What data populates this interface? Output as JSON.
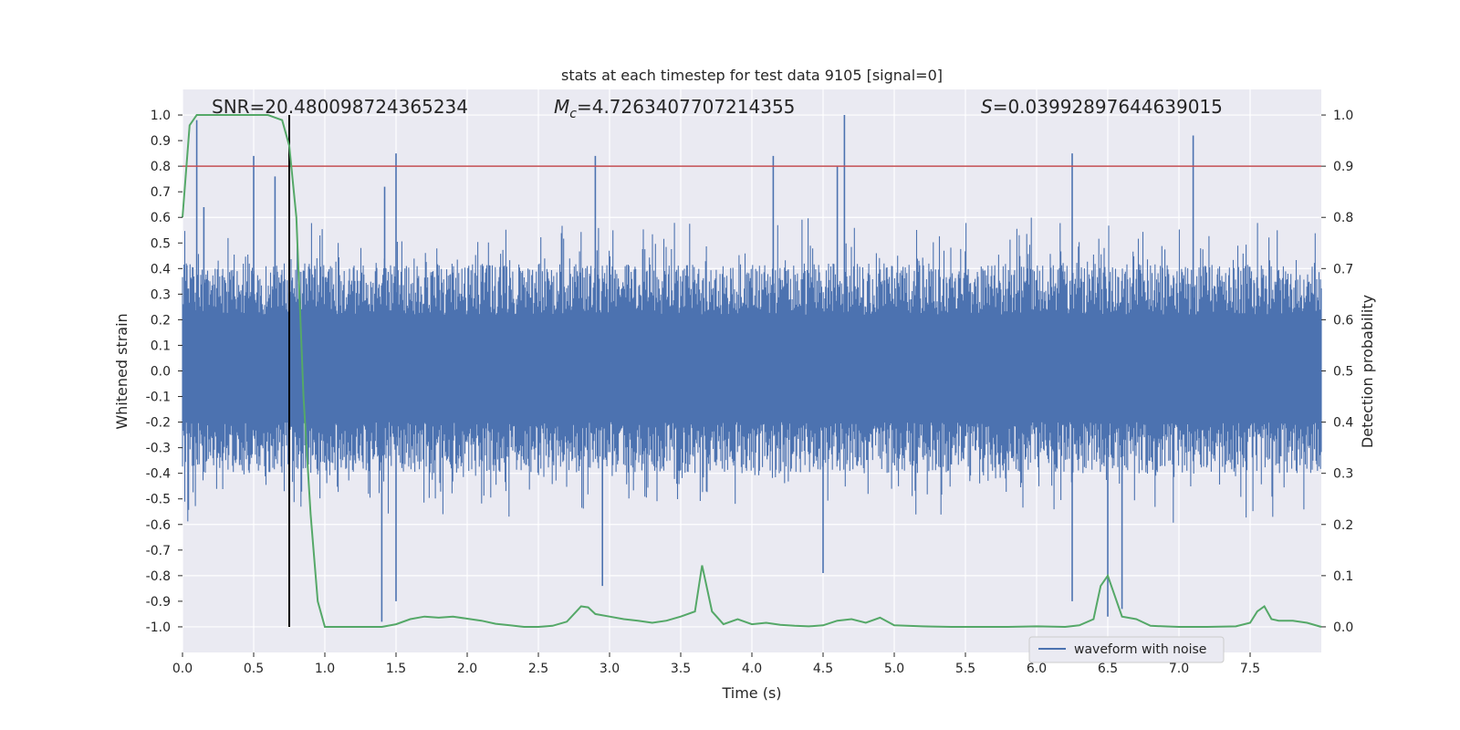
{
  "chart_data": {
    "type": "line",
    "title": "stats at each timestep for test data 9105 [signal=0]",
    "xlabel": "Time (s)",
    "ylabel": "Whitened strain",
    "ylabel_right": "Detection probability",
    "xlim": [
      0.0,
      8.0
    ],
    "ylim": [
      -1.1,
      1.1
    ],
    "ylim_right": [
      -0.05,
      1.05
    ],
    "xticks": [
      0.0,
      0.5,
      1.0,
      1.5,
      2.0,
      2.5,
      3.0,
      3.5,
      4.0,
      4.5,
      5.0,
      5.5,
      6.0,
      6.5,
      7.0,
      7.5
    ],
    "xtick_labels": [
      "0.0",
      "0.5",
      "1.0",
      "1.5",
      "2.0",
      "2.5",
      "3.0",
      "3.5",
      "4.0",
      "4.5",
      "5.0",
      "5.5",
      "6.0",
      "6.5",
      "7.0",
      "7.5"
    ],
    "yticks": [
      1.0,
      0.9,
      0.8,
      0.7,
      0.6,
      0.5,
      0.4,
      0.3,
      0.2,
      0.1,
      0.0,
      -0.1,
      -0.2,
      -0.3,
      -0.4,
      -0.5,
      -0.6,
      -0.7,
      -0.8,
      -0.9,
      -1.0
    ],
    "ytick_labels": [
      "1.0",
      "0.9",
      "0.8",
      "0.7",
      "0.6",
      "0.5",
      "0.4",
      "0.3",
      "0.2",
      "0.1",
      "0.0",
      "-0.1",
      "-0.2",
      "-0.3",
      "-0.4",
      "-0.5",
      "-0.6",
      "-0.7",
      "-0.8",
      "-0.9",
      "-1.0"
    ],
    "yticks_right": [
      1.0,
      0.9,
      0.8,
      0.7,
      0.6,
      0.5,
      0.4,
      0.3,
      0.2,
      0.1,
      0.0
    ],
    "ytick_right_labels": [
      "1.0",
      "0.9",
      "0.8",
      "0.7",
      "0.6",
      "0.5",
      "0.4",
      "0.3",
      "0.2",
      "0.1",
      "0.0"
    ],
    "annotations": {
      "snr": "SNR=20.480098724365234",
      "mc_symbol": "M",
      "mc_sub": "c",
      "mc_value": "=4.7263407707214355",
      "s_symbol": "S",
      "s_value": "=0.03992897644639015"
    },
    "legend": {
      "label": "waveform with noise",
      "location": "lower right"
    },
    "threshold_line": {
      "value": 0.8,
      "axis": "left",
      "color": "#c44e52"
    },
    "vertical_line": {
      "x": 0.75,
      "color": "#000000"
    },
    "series": [
      {
        "name": "waveform with noise",
        "axis": "left",
        "color": "#4c72b0",
        "description": "dense whitened noise, typical envelope about ±0.4",
        "spikes": [
          {
            "x": 0.1,
            "y": 0.98
          },
          {
            "x": 0.15,
            "y": 0.64
          },
          {
            "x": 0.5,
            "y": 0.84
          },
          {
            "x": 0.65,
            "y": 0.76
          },
          {
            "x": 1.4,
            "y": -0.98
          },
          {
            "x": 1.42,
            "y": 0.72
          },
          {
            "x": 1.5,
            "y": 0.85
          },
          {
            "x": 1.5,
            "y": -0.9
          },
          {
            "x": 2.9,
            "y": 0.84
          },
          {
            "x": 2.95,
            "y": -0.84
          },
          {
            "x": 4.15,
            "y": 0.84
          },
          {
            "x": 4.5,
            "y": -0.79
          },
          {
            "x": 4.65,
            "y": 1.0
          },
          {
            "x": 4.6,
            "y": 0.8
          },
          {
            "x": 6.25,
            "y": 0.85
          },
          {
            "x": 6.25,
            "y": -0.9
          },
          {
            "x": 6.5,
            "y": -0.96
          },
          {
            "x": 6.6,
            "y": -0.93
          },
          {
            "x": 7.1,
            "y": 0.92
          }
        ]
      },
      {
        "name": "detection probability",
        "axis": "right",
        "color": "#55a868",
        "x": [
          0.0,
          0.05,
          0.1,
          0.15,
          0.2,
          0.3,
          0.4,
          0.5,
          0.6,
          0.7,
          0.75,
          0.8,
          0.85,
          0.9,
          0.95,
          1.0,
          1.1,
          1.2,
          1.3,
          1.4,
          1.5,
          1.6,
          1.7,
          1.8,
          1.9,
          2.0,
          2.1,
          2.2,
          2.3,
          2.4,
          2.5,
          2.6,
          2.7,
          2.8,
          2.85,
          2.9,
          3.0,
          3.1,
          3.2,
          3.3,
          3.4,
          3.5,
          3.6,
          3.65,
          3.72,
          3.8,
          3.9,
          4.0,
          4.1,
          4.2,
          4.3,
          4.4,
          4.5,
          4.6,
          4.7,
          4.8,
          4.9,
          5.0,
          5.2,
          5.4,
          5.6,
          5.8,
          6.0,
          6.2,
          6.3,
          6.4,
          6.45,
          6.5,
          6.55,
          6.6,
          6.7,
          6.8,
          7.0,
          7.2,
          7.4,
          7.5,
          7.55,
          7.6,
          7.65,
          7.7,
          7.8,
          7.9,
          8.0
        ],
        "values": [
          0.8,
          0.98,
          1.0,
          1.0,
          1.0,
          1.0,
          1.0,
          1.0,
          1.0,
          0.99,
          0.94,
          0.8,
          0.45,
          0.22,
          0.05,
          0.0,
          0.0,
          0.0,
          0.0,
          0.0,
          0.005,
          0.015,
          0.02,
          0.018,
          0.02,
          0.016,
          0.012,
          0.006,
          0.003,
          0.0,
          0.0,
          0.002,
          0.01,
          0.04,
          0.038,
          0.025,
          0.02,
          0.015,
          0.012,
          0.008,
          0.012,
          0.02,
          0.03,
          0.12,
          0.03,
          0.005,
          0.015,
          0.005,
          0.008,
          0.004,
          0.002,
          0.001,
          0.003,
          0.012,
          0.015,
          0.008,
          0.018,
          0.003,
          0.001,
          0.0,
          0.0,
          0.0,
          0.001,
          0.0,
          0.003,
          0.015,
          0.08,
          0.1,
          0.06,
          0.02,
          0.015,
          0.002,
          0.0,
          0.0,
          0.001,
          0.008,
          0.03,
          0.04,
          0.015,
          0.012,
          0.012,
          0.008,
          0.0
        ]
      }
    ]
  }
}
